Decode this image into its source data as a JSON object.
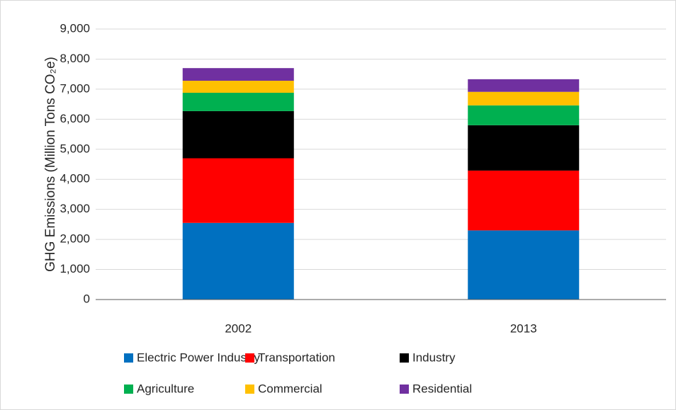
{
  "chart_data": {
    "type": "stacked_bar",
    "y_label": "GHG Emissions (Million Tons CO₂e)",
    "categories": [
      "2002",
      "2013"
    ],
    "series": [
      {
        "name": "Electric Power Industry",
        "color": "#0070c0",
        "values": [
          2550,
          2300
        ]
      },
      {
        "name": "Transportation",
        "color": "#ff0000",
        "values": [
          2150,
          1990
        ]
      },
      {
        "name": "Industry",
        "color": "#000000",
        "values": [
          1570,
          1510
        ]
      },
      {
        "name": "Agriculture",
        "color": "#00b050",
        "values": [
          610,
          660
        ]
      },
      {
        "name": "Commercial",
        "color": "#ffc000",
        "values": [
          400,
          450
        ]
      },
      {
        "name": "Residential",
        "color": "#7030a0",
        "values": [
          420,
          420
        ]
      }
    ],
    "ylim": [
      0,
      9000
    ],
    "yticks": [
      0,
      {
        "value": 1000,
        "label": "1,000"
      },
      {
        "value": 2000,
        "label": "2,000"
      },
      {
        "value": 3000,
        "label": "3,000"
      },
      {
        "value": 4000,
        "label": "4,000"
      },
      {
        "value": 5000,
        "label": "5,000"
      },
      {
        "value": 6000,
        "label": "6,000"
      },
      {
        "value": 7000,
        "label": "7,000"
      },
      {
        "value": 8000,
        "label": "8,000"
      },
      {
        "value": 9000,
        "label": "9,000"
      }
    ],
    "grid": true,
    "legend": "bottom"
  }
}
